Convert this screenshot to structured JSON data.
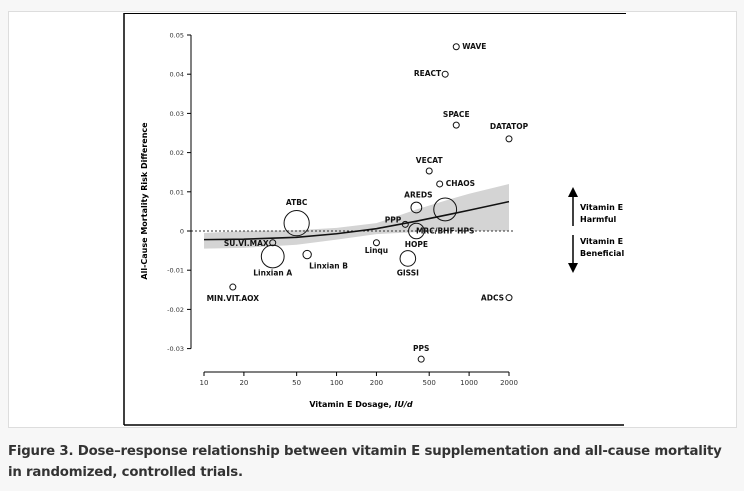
{
  "caption": "Figure 3. Dose–response relationship between vitamin E supplementation and all-cause mortality in randomized, controlled trials.",
  "chart_data": {
    "type": "scatter",
    "xlabel": "Vitamin E Dosage, IU/d",
    "xlabel_main": "Vitamin E Dosage, ",
    "xlabel_unit": "IU/d",
    "ylabel": "All-Cause Mortality Risk Difference",
    "xscale": "log",
    "xlim": [
      10,
      2000
    ],
    "ylim": [
      -0.03,
      0.05
    ],
    "xticks": [
      10,
      20,
      50,
      100,
      200,
      500,
      1000,
      2000
    ],
    "xtick_labels": [
      "10",
      "20",
      "50",
      "100",
      "200",
      "500",
      "1000",
      "2000"
    ],
    "yticks": [
      0.05,
      0.04,
      0.03,
      0.02,
      0.01,
      0,
      -0.01,
      -0.02,
      -0.03
    ],
    "ytick_labels": [
      "0.05",
      "0.04",
      "0.03",
      "0.02",
      "0.01",
      "0",
      "-0.01",
      "-0.02",
      "-0.03"
    ],
    "reference_line": 0,
    "points": [
      {
        "label": "WAVE",
        "x": 800,
        "y": 0.047,
        "size": 1
      },
      {
        "label": "REACT",
        "x": 660,
        "y": 0.04,
        "size": 1
      },
      {
        "label": "SPACE",
        "x": 800,
        "y": 0.027,
        "size": 1
      },
      {
        "label": "DATATOP",
        "x": 2000,
        "y": 0.0235,
        "size": 1
      },
      {
        "label": "VECAT",
        "x": 500,
        "y": 0.0153,
        "size": 1
      },
      {
        "label": "CHAOS",
        "x": 600,
        "y": 0.012,
        "size": 1
      },
      {
        "label": "AREDS",
        "x": 400,
        "y": 0.006,
        "size": 3
      },
      {
        "label": "MRC/BHF HPS",
        "x": 660,
        "y": 0.0055,
        "size": 8
      },
      {
        "label": "PPP",
        "x": 330,
        "y": 0.0017,
        "size": 1
      },
      {
        "label": "HOPE",
        "x": 400,
        "y": 0.0,
        "size": 5
      },
      {
        "label": "ATBC",
        "x": 50,
        "y": 0.002,
        "size": 9
      },
      {
        "label": "SU.VI.MAX",
        "x": 33,
        "y": -0.003,
        "size": 1
      },
      {
        "label": "Linxian A",
        "x": 33,
        "y": -0.0065,
        "size": 8
      },
      {
        "label": "Linxian B",
        "x": 60,
        "y": -0.006,
        "size": 2
      },
      {
        "label": "Linqu",
        "x": 200,
        "y": -0.003,
        "size": 1
      },
      {
        "label": "GISSI",
        "x": 345,
        "y": -0.007,
        "size": 5
      },
      {
        "label": "MIN.VIT.AOX",
        "x": 16.5,
        "y": -0.0143,
        "size": 1
      },
      {
        "label": "ADCS",
        "x": 2000,
        "y": -0.017,
        "size": 1
      },
      {
        "label": "PPS",
        "x": 435,
        "y": -0.0327,
        "size": 1
      }
    ],
    "fit_line": {
      "x": [
        10,
        20,
        50,
        100,
        200,
        400,
        700,
        1000,
        2000
      ],
      "y": [
        -0.0022,
        -0.0021,
        -0.0016,
        -0.0007,
        0.0006,
        0.0025,
        0.0042,
        0.0053,
        0.0075
      ]
    },
    "confidence_band": {
      "x": [
        10,
        20,
        50,
        100,
        200,
        400,
        700,
        1000,
        2000
      ],
      "lower": [
        -0.0045,
        -0.0043,
        -0.0035,
        -0.0022,
        -0.0008,
        -0.0003,
        0.0,
        0.0,
        0.0
      ],
      "upper": [
        -0.0005,
        0.0,
        0.0002,
        0.0008,
        0.002,
        0.0055,
        0.008,
        0.0095,
        0.012
      ]
    },
    "annotations": {
      "harmful_line1": "Vitamin E",
      "harmful_line2": "Harmful",
      "beneficial_line1": "Vitamin E",
      "beneficial_line2": "Beneficial"
    }
  }
}
